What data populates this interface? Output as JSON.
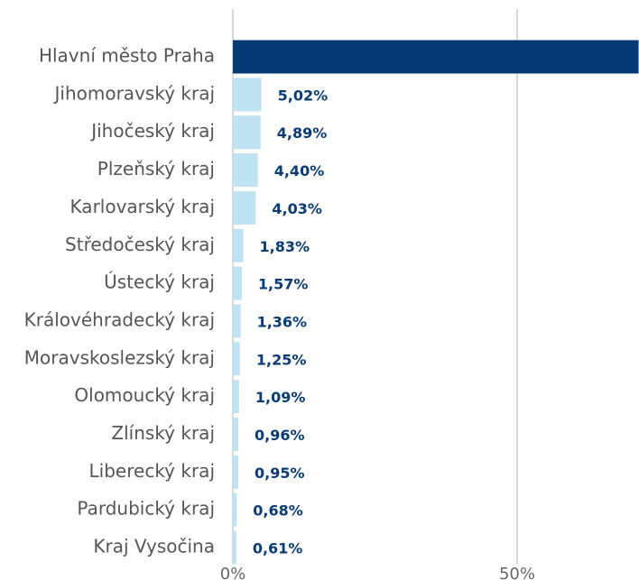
{
  "chart_data": {
    "type": "hbar",
    "categories": [
      "Hlavní město Praha",
      "Jihomoravský kraj",
      "Jihočeský kraj",
      "Plzeňský kraj",
      "Karlovarský kraj",
      "Středočeský kraj",
      "Ústecký kraj",
      "Královéhradecký kraj",
      "Moravskoslezský kraj",
      "Olomoucký kraj",
      "Zlínský kraj",
      "Liberecký kraj",
      "Pardubický kraj",
      "Kraj Vysočina"
    ],
    "values": [
      71.36,
      5.02,
      4.89,
      4.4,
      4.03,
      1.83,
      1.57,
      1.36,
      1.25,
      1.09,
      0.96,
      0.95,
      0.68,
      0.61
    ],
    "value_labels": [
      null,
      "5,02%",
      "4,89%",
      "4,40%",
      "4,03%",
      "1,83%",
      "1,57%",
      "1,36%",
      "1,25%",
      "1,09%",
      "0,96%",
      "0,95%",
      "0,68%",
      "0,61%"
    ],
    "colors": [
      "#063a74",
      "#bfe3f2",
      "#bfe3f2",
      "#bfe3f2",
      "#bfe3f2",
      "#bfe3f2",
      "#bfe3f2",
      "#bfe3f2",
      "#bfe3f2",
      "#bfe3f2",
      "#bfe3f2",
      "#bfe3f2",
      "#bfe3f2",
      "#bfe3f2"
    ],
    "xlim": [
      0,
      71.43
    ],
    "xticks": [
      {
        "value": 0,
        "label": "0%"
      },
      {
        "value": 50,
        "label": "50%"
      }
    ],
    "grid": true
  }
}
